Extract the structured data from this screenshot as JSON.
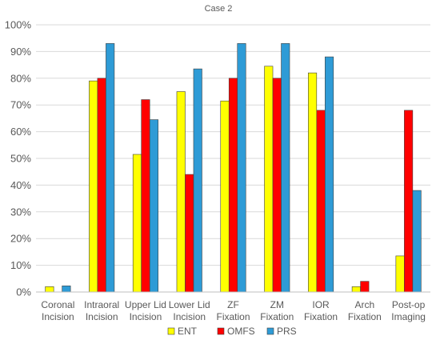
{
  "chart_data": {
    "type": "bar",
    "title": "Case 2",
    "categories": [
      [
        "Coronal",
        "Incision"
      ],
      [
        "Intraoral",
        "Incision"
      ],
      [
        "Upper Lid",
        "Incision"
      ],
      [
        "Lower Lid",
        "Incision"
      ],
      [
        "ZF",
        "Fixation"
      ],
      [
        "ZM",
        "Fixation"
      ],
      [
        "IOR",
        "Fixation"
      ],
      [
        "Arch",
        "Fixation"
      ],
      [
        "Post-op",
        "Imaging"
      ]
    ],
    "y_ticks": [
      "0%",
      "10%",
      "20%",
      "30%",
      "40%",
      "50%",
      "60%",
      "70%",
      "80%",
      "90%",
      "100%"
    ],
    "ylim": [
      0,
      100
    ],
    "grid": true,
    "legend_position": "bottom",
    "series": [
      {
        "name": "ENT",
        "color": "#ffff00",
        "values": [
          2,
          79,
          51.5,
          75,
          71.5,
          84.5,
          82,
          2,
          13.5
        ]
      },
      {
        "name": "OMFS",
        "color": "#ff0000",
        "values": [
          0,
          80,
          72,
          44,
          80,
          80,
          68,
          4,
          68
        ]
      },
      {
        "name": "PRS",
        "color": "#2e9bd6",
        "values": [
          2.3,
          93,
          64.5,
          83.5,
          93,
          93,
          88,
          0,
          38
        ]
      }
    ]
  }
}
